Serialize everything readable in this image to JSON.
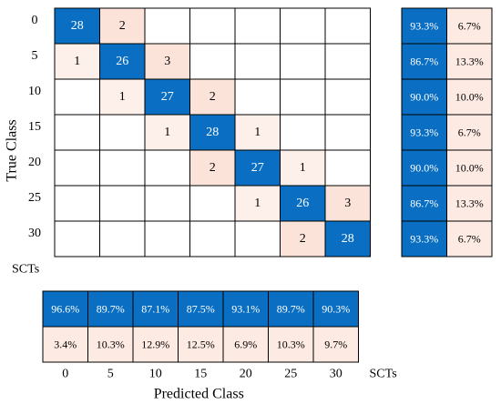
{
  "chart_data": {
    "type": "heatmap",
    "title": "",
    "xlabel": "Predicted Class",
    "ylabel": "True Class",
    "class_unit_label": "SCTs",
    "classes": [
      "0",
      "5",
      "10",
      "15",
      "20",
      "25",
      "30"
    ],
    "matrix": [
      [
        28,
        2,
        null,
        null,
        null,
        null,
        null
      ],
      [
        1,
        26,
        3,
        null,
        null,
        null,
        null
      ],
      [
        null,
        1,
        27,
        2,
        null,
        null,
        null
      ],
      [
        null,
        null,
        1,
        28,
        1,
        null,
        null
      ],
      [
        null,
        null,
        null,
        2,
        27,
        1,
        null
      ],
      [
        null,
        null,
        null,
        null,
        1,
        26,
        3
      ],
      [
        null,
        null,
        null,
        null,
        null,
        2,
        28
      ]
    ],
    "row_summary": {
      "correct": [
        "93.3%",
        "86.7%",
        "90.0%",
        "93.3%",
        "90.0%",
        "86.7%",
        "93.3%"
      ],
      "incorrect": [
        "6.7%",
        "13.3%",
        "10.0%",
        "6.7%",
        "10.0%",
        "13.3%",
        "6.7%"
      ]
    },
    "column_summary": {
      "correct": [
        "96.6%",
        "89.7%",
        "87.1%",
        "87.5%",
        "93.1%",
        "89.7%",
        "90.3%"
      ],
      "incorrect": [
        "3.4%",
        "10.3%",
        "12.9%",
        "12.5%",
        "6.9%",
        "10.3%",
        "9.7%"
      ]
    },
    "colors": {
      "diagonal": "#0a6fc2",
      "diagonal_text": "#ffffff",
      "off_diagonal": "#fbe3da",
      "off_diagonal_light": "#fdf0ea",
      "summary_incorrect": "#fdeae3",
      "empty": "#ffffff",
      "text": "#000000",
      "grid": "#000000"
    }
  }
}
